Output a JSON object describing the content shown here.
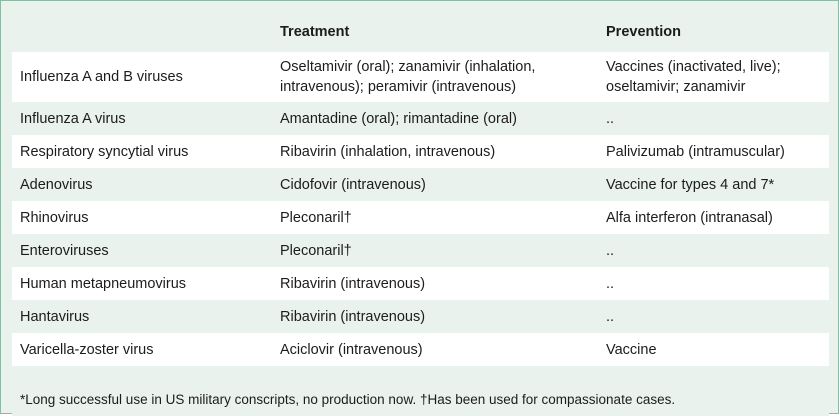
{
  "table": {
    "headers": [
      "",
      "Treatment",
      "Prevention"
    ],
    "rows": [
      {
        "virus": "Influenza A and B viruses",
        "treatment": "Oseltamivir (oral); zanamivir (inhalation, intravenous); peramivir (intravenous)",
        "prevention": "Vaccines (inactivated, live); oseltamivir; zanamivir"
      },
      {
        "virus": "Influenza A virus",
        "treatment": "Amantadine (oral); rimantadine (oral)",
        "prevention": ".."
      },
      {
        "virus": "Respiratory syncytial virus",
        "treatment": "Ribavirin (inhalation, intravenous)",
        "prevention": "Palivizumab (intramuscular)"
      },
      {
        "virus": "Adenovirus",
        "treatment": "Cidofovir (intravenous)",
        "prevention": "Vaccine for types 4 and 7*"
      },
      {
        "virus": "Rhinovirus",
        "treatment": "Pleconaril†",
        "prevention": "Alfa interferon (intranasal)"
      },
      {
        "virus": "Enteroviruses",
        "treatment": "Pleconaril†",
        "prevention": ".."
      },
      {
        "virus": "Human metapneumovirus",
        "treatment": "Ribavirin (intravenous)",
        "prevention": ".."
      },
      {
        "virus": "Hantavirus",
        "treatment": "Ribavirin (intravenous)",
        "prevention": ".."
      },
      {
        "virus": "Varicella-zoster virus",
        "treatment": "Aciclovir (intravenous)",
        "prevention": "Vaccine"
      }
    ],
    "footnote": "*Long successful use in US military conscripts, no production now. †Has been used for compassionate cases."
  },
  "colors": {
    "panel_background": "#e9f2ed",
    "panel_border": "#8fb8a4",
    "row_light": "#ffffff"
  }
}
